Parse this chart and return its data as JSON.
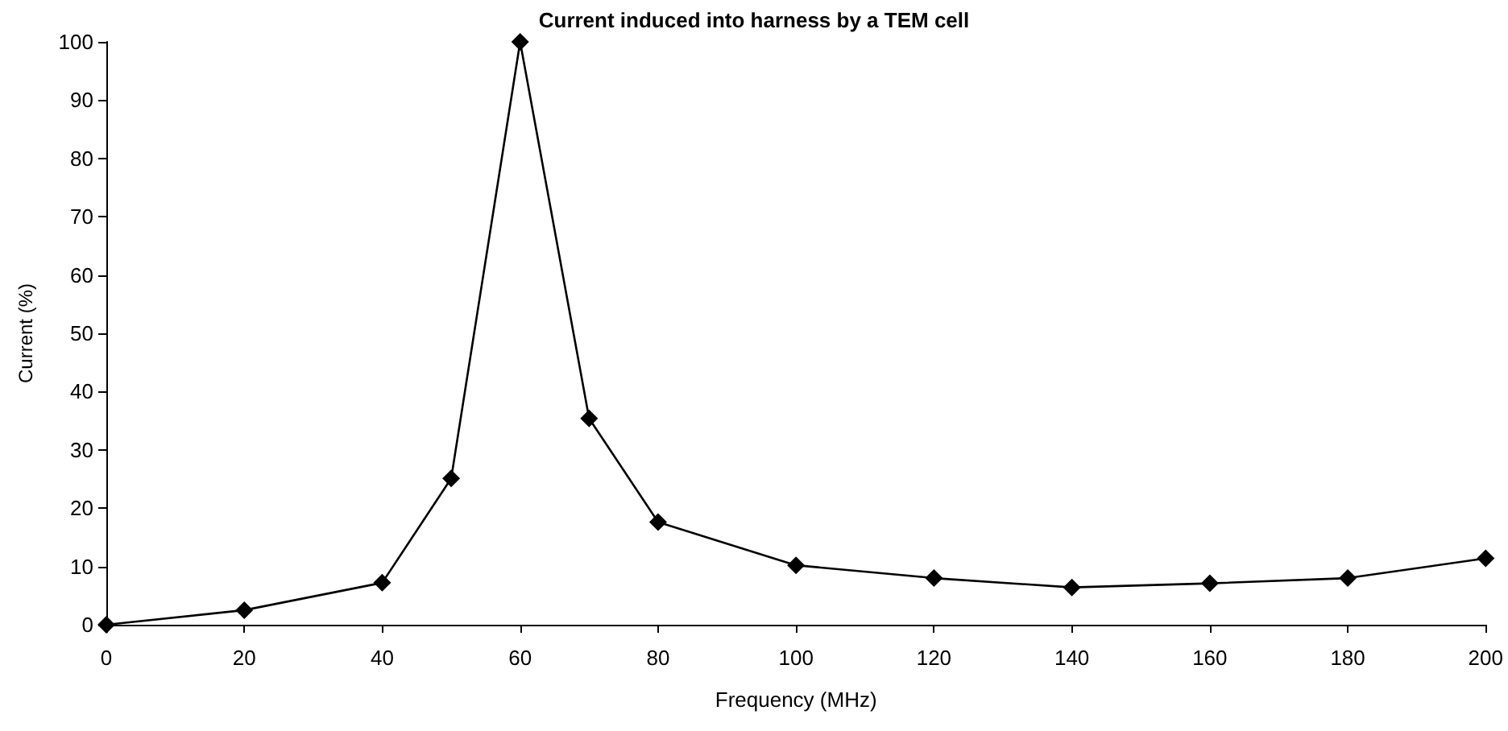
{
  "chart_data": {
    "type": "line",
    "title": "Current induced into harness by a TEM cell",
    "xlabel": "Frequency (MHz)",
    "ylabel": "Current (%)",
    "x": [
      0,
      20,
      40,
      50,
      60,
      70,
      80,
      100,
      120,
      140,
      160,
      180,
      200
    ],
    "series": [
      {
        "color": "#000000",
        "values": [
          0,
          2.5,
          7.2,
          25.1,
          100,
          35.4,
          17.6,
          10.2,
          8.0,
          6.4,
          7.1,
          8.0,
          11.4
        ]
      }
    ],
    "xlim": [
      0,
      200
    ],
    "xticks": [
      0,
      20,
      40,
      60,
      80,
      100,
      120,
      140,
      160,
      180,
      200
    ],
    "ylim": [
      0,
      100
    ],
    "yticks": [
      0,
      10,
      20,
      30,
      40,
      50,
      60,
      70,
      80,
      90,
      100
    ],
    "grid": false,
    "marker": "diamond",
    "line_style": "solid"
  }
}
